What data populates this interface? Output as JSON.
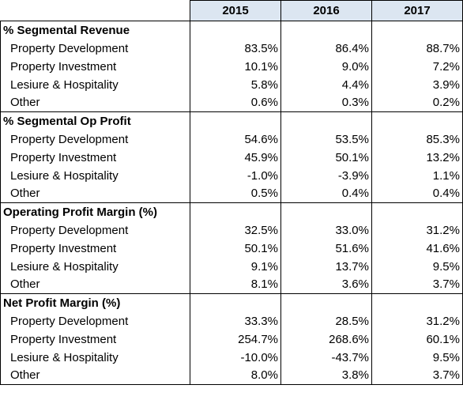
{
  "header": {
    "columns": [
      "2015",
      "2016",
      "2017"
    ]
  },
  "sections": [
    {
      "title": "% Segmental Revenue",
      "rows": [
        {
          "label": "Property Development",
          "values": [
            "83.5%",
            "86.4%",
            "88.7%"
          ]
        },
        {
          "label": "Property Investment",
          "values": [
            "10.1%",
            "9.0%",
            "7.2%"
          ]
        },
        {
          "label": "Lesiure & Hospitality",
          "values": [
            "5.8%",
            "4.4%",
            "3.9%"
          ]
        },
        {
          "label": "Other",
          "values": [
            "0.6%",
            "0.3%",
            "0.2%"
          ]
        }
      ]
    },
    {
      "title": "% Segmental Op Profit",
      "rows": [
        {
          "label": "Property Development",
          "values": [
            "54.6%",
            "53.5%",
            "85.3%"
          ]
        },
        {
          "label": "Property Investment",
          "values": [
            "45.9%",
            "50.1%",
            "13.2%"
          ]
        },
        {
          "label": "Lesiure & Hospitality",
          "values": [
            "-1.0%",
            "-3.9%",
            "1.1%"
          ]
        },
        {
          "label": "Other",
          "values": [
            "0.5%",
            "0.4%",
            "0.4%"
          ]
        }
      ]
    },
    {
      "title": "Operating Profit Margin (%)",
      "rows": [
        {
          "label": "Property Development",
          "values": [
            "32.5%",
            "33.0%",
            "31.2%"
          ]
        },
        {
          "label": "Property Investment",
          "values": [
            "50.1%",
            "51.6%",
            "41.6%"
          ]
        },
        {
          "label": "Lesiure & Hospitality",
          "values": [
            "9.1%",
            "13.7%",
            "9.5%"
          ]
        },
        {
          "label": "Other",
          "values": [
            "8.1%",
            "3.6%",
            "3.7%"
          ]
        }
      ]
    },
    {
      "title": "Net Profit Margin (%)",
      "rows": [
        {
          "label": "Property Development",
          "values": [
            "33.3%",
            "28.5%",
            "31.2%"
          ]
        },
        {
          "label": "Property Investment",
          "values": [
            "254.7%",
            "268.6%",
            "60.1%"
          ]
        },
        {
          "label": "Lesiure & Hospitality",
          "values": [
            "-10.0%",
            "-43.7%",
            "9.5%"
          ]
        },
        {
          "label": "Other",
          "values": [
            "8.0%",
            "3.8%",
            "3.7%"
          ]
        }
      ]
    }
  ]
}
